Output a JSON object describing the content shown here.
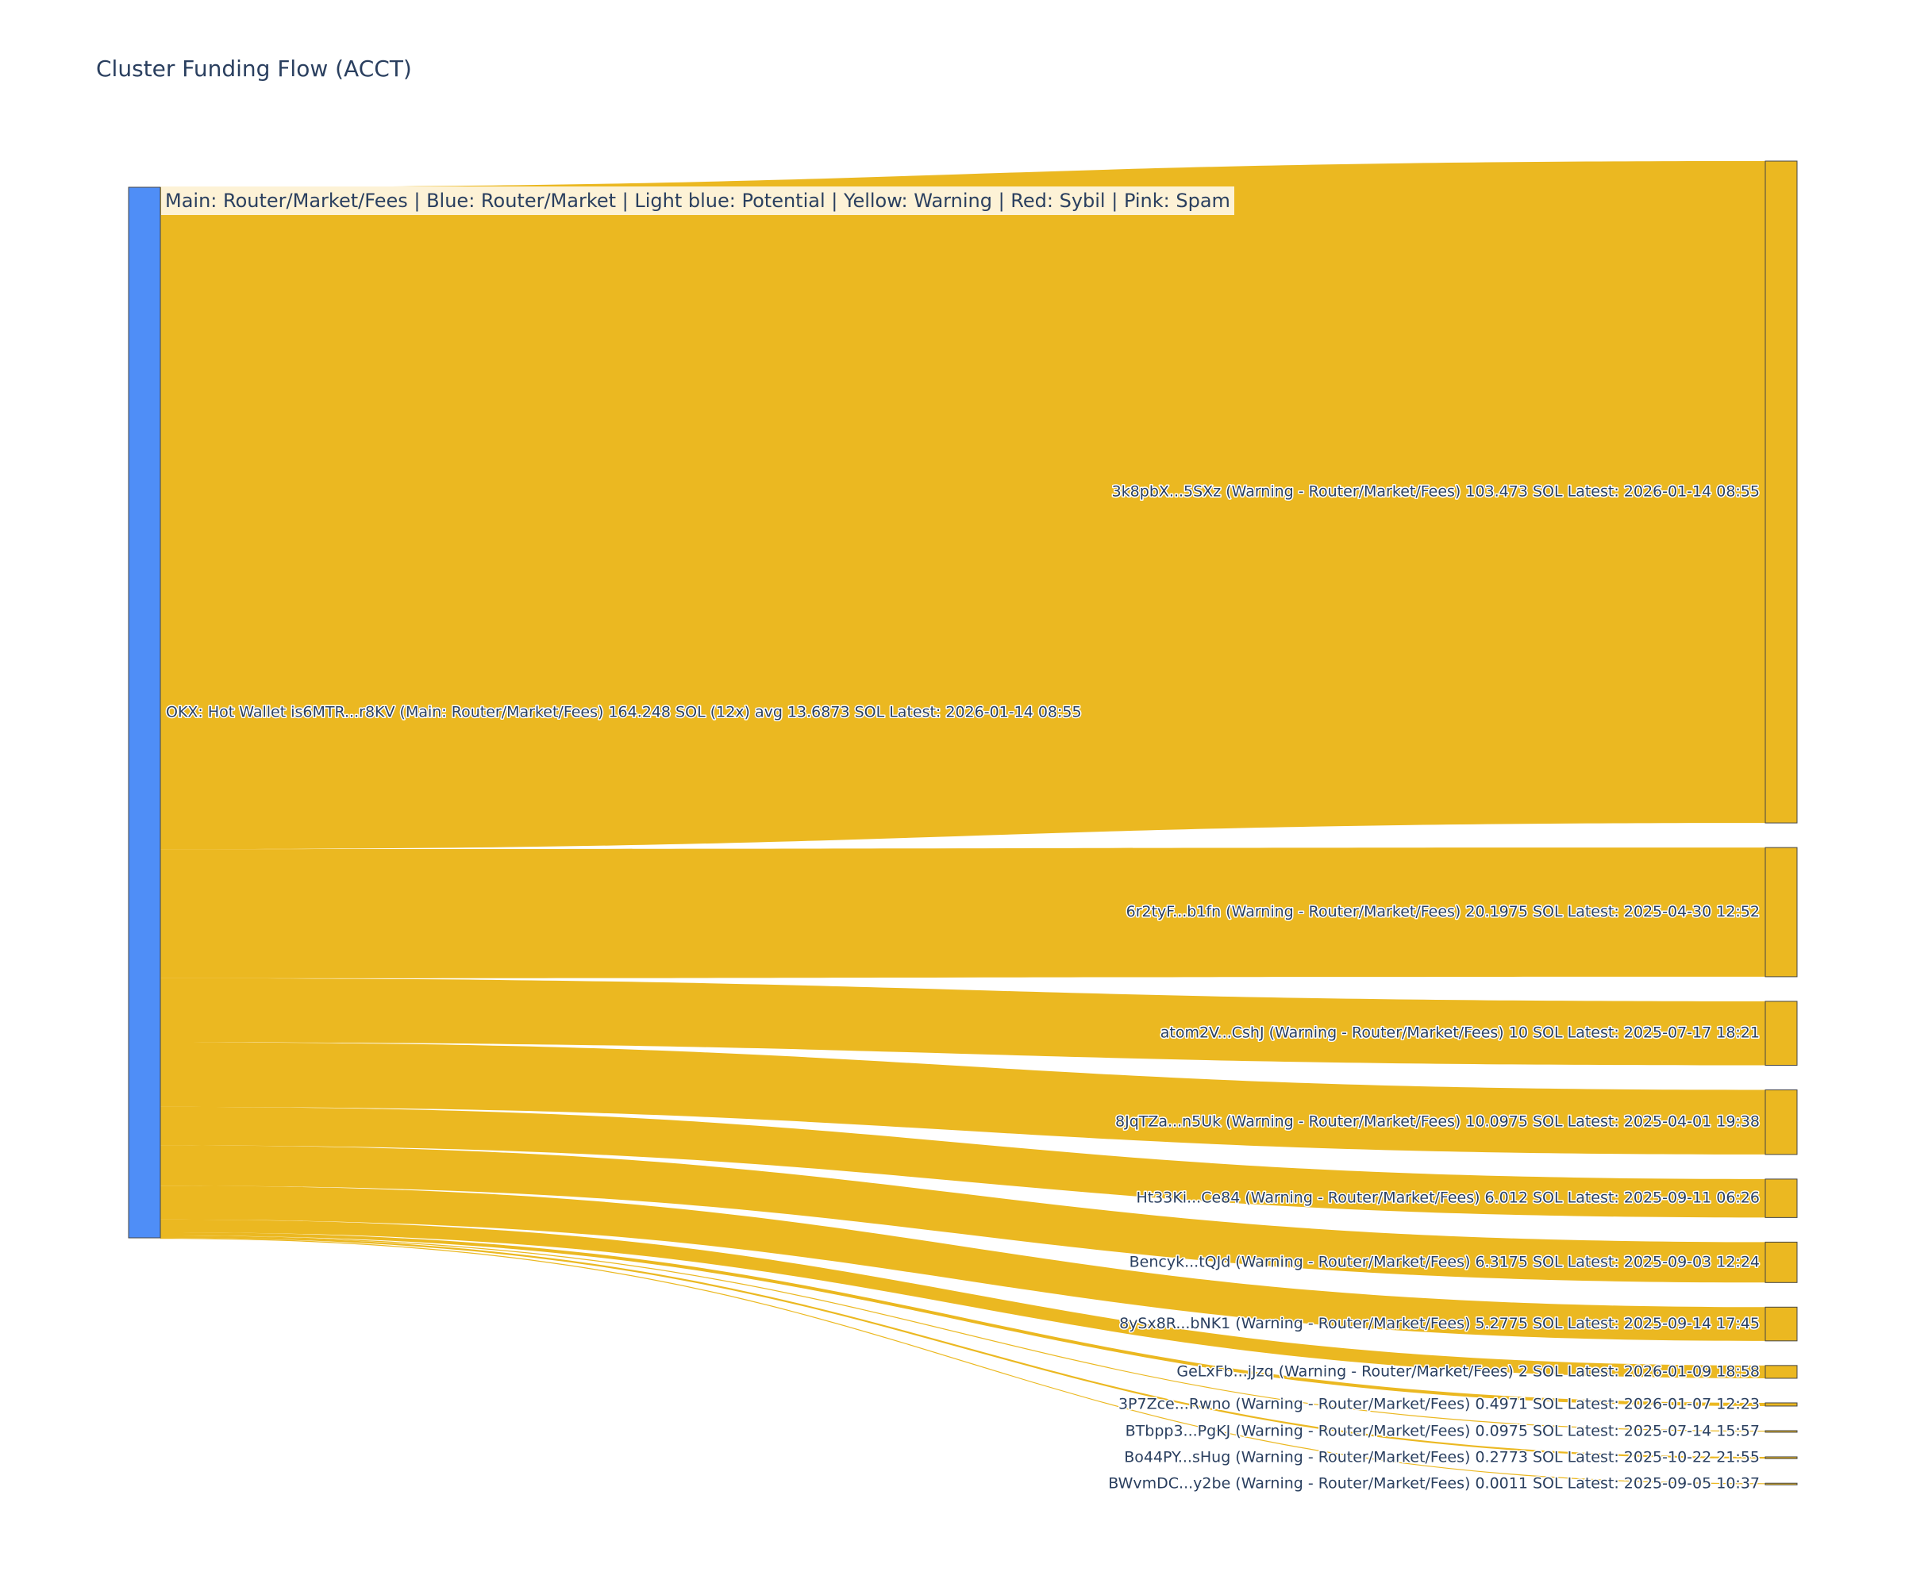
{
  "title": "Cluster Funding Flow (ACCT)",
  "legend_text": "Main: Router/Market/Fees  |  Blue: Router/Market | Light blue: Potential | Yellow: Warning | Red: Sybil | Pink: Spam",
  "colors": {
    "source_node": "#4f8ef7",
    "link": "#ebb821",
    "target_node": "#ebb821",
    "node_border": "#444444",
    "legend_bg": "#fdf2d6"
  },
  "chart_data": {
    "type": "sankey",
    "unit": "SOL",
    "source": {
      "label": "OKX: Hot Wallet is6MTR...r8KV (Main: Router/Market/Fees) 164.248 SOL (12x) avg 13.6873 SOL Latest: 2026-01-14 08:55",
      "value": 164.248
    },
    "targets": [
      {
        "label": "3k8pbX...5SXz (Warning - Router/Market/Fees) 103.473 SOL Latest: 2026-01-14 08:55",
        "value": 103.473
      },
      {
        "label": "6r2tyF...b1fn (Warning - Router/Market/Fees) 20.1975 SOL Latest: 2025-04-30 12:52",
        "value": 20.1975
      },
      {
        "label": "atom2V...CshJ (Warning - Router/Market/Fees) 10 SOL Latest: 2025-07-17 18:21",
        "value": 10
      },
      {
        "label": "8JqTZa...n5Uk (Warning - Router/Market/Fees) 10.0975 SOL Latest: 2025-04-01 19:38",
        "value": 10.0975
      },
      {
        "label": "Ht33Ki...Ce84 (Warning - Router/Market/Fees) 6.012 SOL Latest: 2025-09-11 06:26",
        "value": 6.012
      },
      {
        "label": "Bencyk...tQJd (Warning - Router/Market/Fees) 6.3175 SOL Latest: 2025-09-03 12:24",
        "value": 6.3175
      },
      {
        "label": "8ySx8R...bNK1 (Warning - Router/Market/Fees) 5.2775 SOL Latest: 2025-09-14 17:45",
        "value": 5.2775
      },
      {
        "label": "GeLxFb...jJzq (Warning - Router/Market/Fees) 2 SOL Latest: 2026-01-09 18:58",
        "value": 2
      },
      {
        "label": "3P7Zce...Rwno (Warning - Router/Market/Fees) 0.4971 SOL Latest: 2026-01-07 12:23",
        "value": 0.4971
      },
      {
        "label": "BTbpp3...PgKJ (Warning - Router/Market/Fees) 0.0975 SOL Latest: 2025-07-14 15:57",
        "value": 0.0975
      },
      {
        "label": "Bo44PY...sHug (Warning - Router/Market/Fees) 0.2773 SOL Latest: 2025-10-22 21:55",
        "value": 0.2773
      },
      {
        "label": "BWvmDC...y2be (Warning - Router/Market/Fees) 0.0011 SOL Latest: 2025-09-05 10:37",
        "value": 0.0011
      }
    ]
  }
}
